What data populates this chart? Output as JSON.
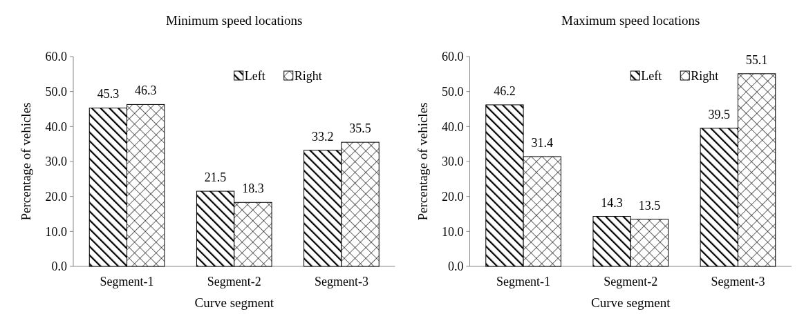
{
  "chart_data": [
    {
      "type": "bar",
      "title": "Minimum  speed locations",
      "xlabel": "Curve segment",
      "ylabel": "Percentage of vehicles",
      "categories": [
        "Segment-1",
        "Segment-2",
        "Segment-3"
      ],
      "series": [
        {
          "name": "Left",
          "color": "#000000",
          "values": [
            45.3,
            21.5,
            33.2
          ]
        },
        {
          "name": "Right",
          "color": "#000000",
          "values": [
            46.3,
            18.3,
            35.5
          ]
        }
      ],
      "ylim": [
        0,
        60
      ],
      "yticks": [
        {
          "value": 0,
          "label": "0.0"
        },
        {
          "value": 10,
          "label": "10.0"
        },
        {
          "value": 20,
          "label": "20.0"
        },
        {
          "value": 30,
          "label": "30.0"
        },
        {
          "value": 40,
          "label": "40.0"
        },
        {
          "value": 50,
          "label": "50.0"
        },
        {
          "value": 60,
          "label": "60.0"
        }
      ],
      "data_labels": true,
      "legend": "top right",
      "grid": false
    },
    {
      "type": "bar",
      "title": "Maximum  speed locations",
      "xlabel": "Curve segment",
      "ylabel": "Percentage of vehicles",
      "categories": [
        "Segment-1",
        "Segment-2",
        "Segment-3"
      ],
      "series": [
        {
          "name": "Left",
          "color": "#000000",
          "values": [
            46.2,
            14.3,
            39.5
          ]
        },
        {
          "name": "Right",
          "color": "#000000",
          "values": [
            31.4,
            13.5,
            55.1
          ]
        }
      ],
      "ylim": [
        0,
        60
      ],
      "yticks": [
        {
          "value": 0,
          "label": "0.0"
        },
        {
          "value": 10,
          "label": "10.0"
        },
        {
          "value": 20,
          "label": "20.0"
        },
        {
          "value": 30,
          "label": "30.0"
        },
        {
          "value": 40,
          "label": "40.0"
        },
        {
          "value": 50,
          "label": "50.0"
        },
        {
          "value": 60,
          "label": "60.0"
        }
      ],
      "data_labels": true,
      "legend": "top right",
      "grid": false
    }
  ]
}
